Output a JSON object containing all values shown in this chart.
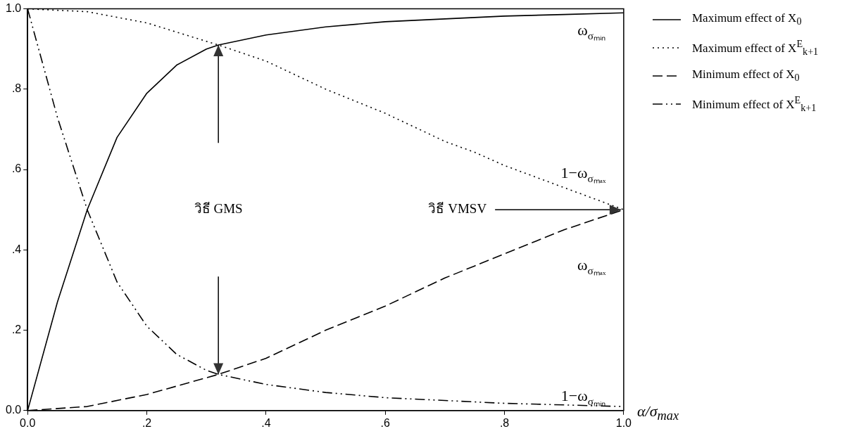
{
  "chart_data": {
    "type": "line",
    "xlabel": "α/σ$_{max}$",
    "xlim": [
      0,
      1
    ],
    "ylim": [
      0,
      1
    ],
    "xticks": [
      {
        "value": 0,
        "label": "0.0"
      },
      {
        "value": 0.2,
        "label": ".2"
      },
      {
        "value": 0.4,
        "label": ".4"
      },
      {
        "value": 0.6,
        "label": ".6"
      },
      {
        "value": 0.8,
        "label": ".8"
      },
      {
        "value": 1,
        "label": "1.0"
      }
    ],
    "yticks": [
      {
        "value": 0,
        "label": "0.0"
      },
      {
        "value": 0.2,
        "label": ".2"
      },
      {
        "value": 0.4,
        "label": ".4"
      },
      {
        "value": 0.6,
        "label": ".6"
      },
      {
        "value": 0.8,
        "label": ".8"
      },
      {
        "value": 1,
        "label": "1.0"
      }
    ],
    "grid": false,
    "legend": "right",
    "marker": "none",
    "series": [
      {
        "name": "Maximum effect of X$_{0}$",
        "color": "#000000",
        "line_style": "solid",
        "x": [
          0,
          0.05,
          0.1,
          0.15,
          0.2,
          0.25,
          0.3,
          0.32,
          0.4,
          0.5,
          0.6,
          0.7,
          0.8,
          0.9,
          1
        ],
        "values": [
          0,
          0.27,
          0.5,
          0.68,
          0.79,
          0.86,
          0.9,
          0.91,
          0.935,
          0.955,
          0.968,
          0.975,
          0.982,
          0.986,
          0.99
        ]
      },
      {
        "name": "Maximum effect of X$^{E}$$_{k+1}$",
        "color": "#000000",
        "line_style": "dotted",
        "x": [
          0,
          0.1,
          0.2,
          0.32,
          0.4,
          0.5,
          0.6,
          0.7,
          0.75,
          0.8,
          0.9,
          1
        ],
        "values": [
          1,
          0.993,
          0.965,
          0.91,
          0.87,
          0.8,
          0.74,
          0.67,
          0.643,
          0.61,
          0.555,
          0.5
        ]
      },
      {
        "name": "Minimum effect of X$_{0}$",
        "color": "#000000",
        "line_style": "dashed",
        "x": [
          0,
          0.1,
          0.2,
          0.32,
          0.4,
          0.5,
          0.6,
          0.7,
          0.75,
          0.8,
          0.9,
          1
        ],
        "values": [
          0,
          0.01,
          0.04,
          0.09,
          0.13,
          0.2,
          0.26,
          0.33,
          0.36,
          0.39,
          0.45,
          0.5
        ]
      },
      {
        "name": "Minimum effect of X$^{E}$$_{k+1}$",
        "color": "#000000",
        "line_style": "dashdot",
        "x": [
          0,
          0.05,
          0.1,
          0.15,
          0.2,
          0.25,
          0.3,
          0.32,
          0.4,
          0.5,
          0.6,
          0.7,
          0.8,
          0.9,
          1
        ],
        "values": [
          1,
          0.73,
          0.5,
          0.32,
          0.21,
          0.14,
          0.1,
          0.09,
          0.065,
          0.045,
          0.032,
          0.025,
          0.018,
          0.014,
          0.01
        ]
      }
    ],
    "annotations": [
      "ω$_{σₘᵢₙ}$",
      "1−ω$_{σₘₐₓ}$",
      "ω$_{σₘₐₓ}$",
      "1−ω$_{σₘᵢₙ}$",
      "วิธี GMS",
      {
        "text": "วิธี VMSV",
        "x": 1,
        "y": 0.5
      }
    ]
  }
}
